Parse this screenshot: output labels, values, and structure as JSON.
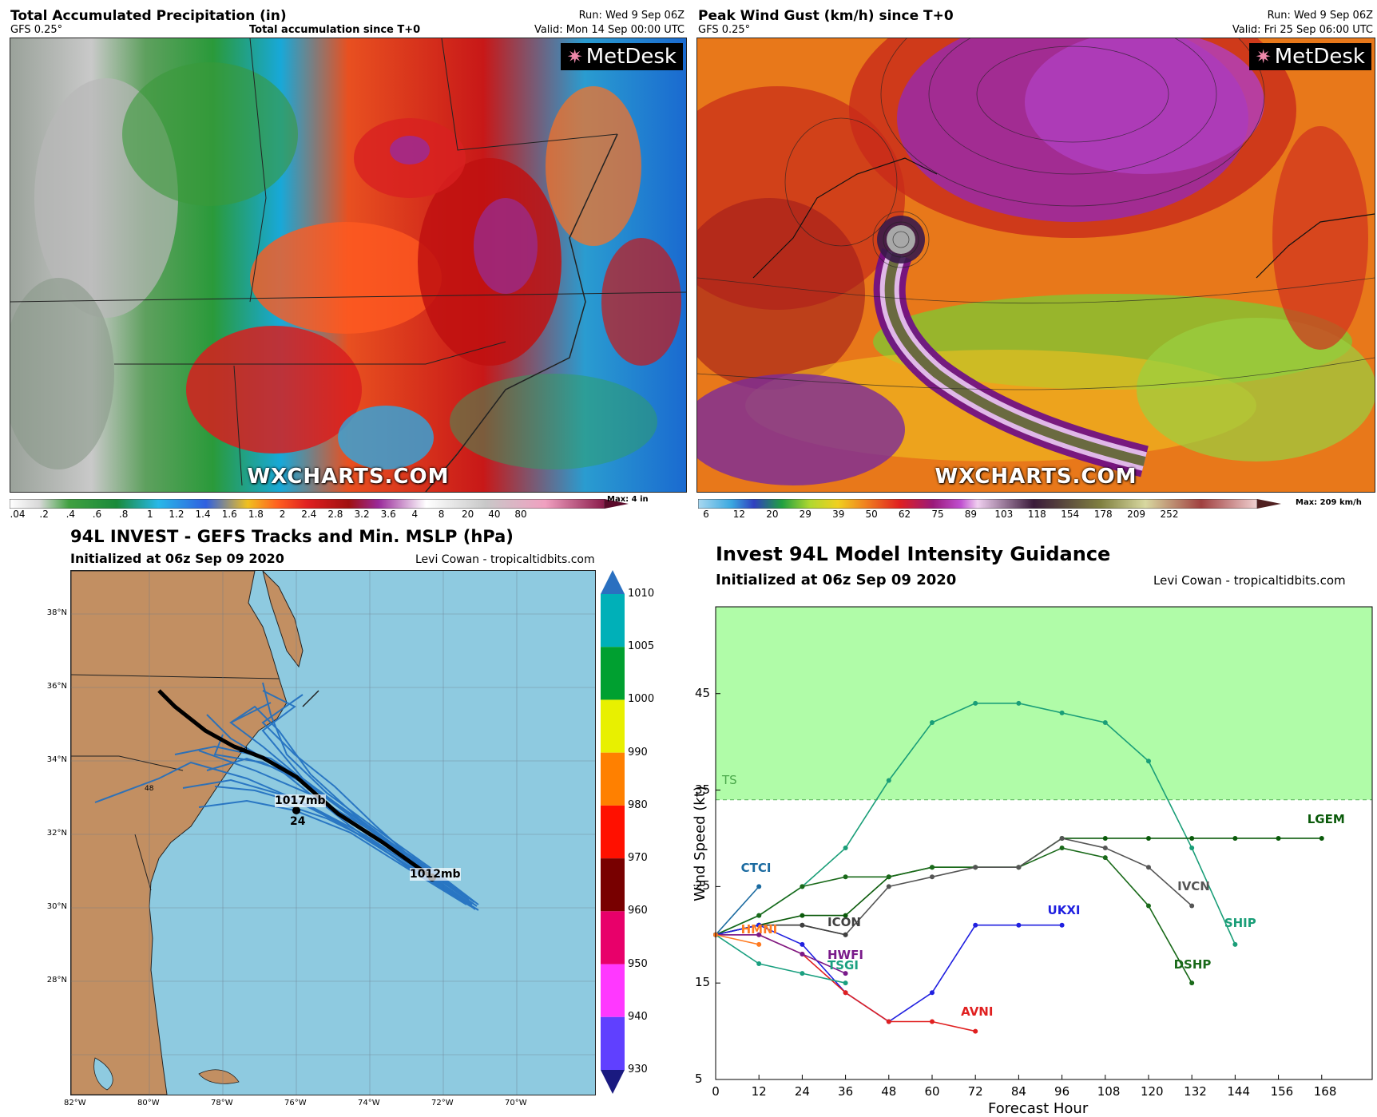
{
  "precip": {
    "title": "Total Accumulated Precipitation (in)",
    "model": "GFS 0.25°",
    "subtitle": "Total accumulation since T+0",
    "run": "Run: Wed 9 Sep 06Z",
    "valid": "Valid: Mon 14 Sep 00:00 UTC",
    "logo": "MetDesk",
    "watermark": "WXCHARTS.COM",
    "colorbar_labels": [
      ".04",
      ".2",
      ".4",
      ".6",
      ".8",
      "1",
      "1.2",
      "1.4",
      "1.6",
      "1.8",
      "2",
      "2.4",
      "2.8",
      "3.2",
      "3.6",
      "4",
      "8",
      "20",
      "40",
      "80"
    ],
    "max_label": "Max: 4 in"
  },
  "gust": {
    "title": "Peak Wind Gust (km/h) since T+0",
    "model": "GFS 0.25°",
    "run": "Run: Wed 9 Sep 06Z",
    "valid": "Valid: Fri 25 Sep 06:00 UTC",
    "logo": "MetDesk",
    "watermark": "WXCHARTS.COM",
    "colorbar_labels": [
      "6",
      "12",
      "20",
      "29",
      "39",
      "50",
      "62",
      "75",
      "89",
      "103",
      "118",
      "154",
      "178",
      "209",
      "252"
    ],
    "max_label": "Max: 209 km/h"
  },
  "tracks": {
    "title": "94L INVEST - GEFS Tracks and Min. MSLP (hPa)",
    "initialized": "Initialized at 06z Sep 09 2020",
    "credit": "Levi Cowan - tropicaltidbits.com",
    "lat_labels": [
      "38°N",
      "36°N",
      "34°N",
      "32°N",
      "30°N",
      "28°N"
    ],
    "lon_labels": [
      "82°W",
      "80°W",
      "78°W",
      "76°W",
      "74°W",
      "72°W",
      "70°W"
    ],
    "colorbar_labels": [
      "1010",
      "1005",
      "1000",
      "990",
      "980",
      "970",
      "960",
      "950",
      "940",
      "930"
    ],
    "colorbar_colors": [
      "#00b0b8",
      "#00a030",
      "#e8f000",
      "#ff8000",
      "#ff1000",
      "#780000",
      "#e8006a",
      "#ff38ff",
      "#6040ff"
    ],
    "annotations": {
      "start": "1017mb",
      "end": "1012mb",
      "hour": "24",
      "hour48": "48",
      "small24": "24"
    }
  },
  "intensity": {
    "title": "Invest 94L Model Intensity Guidance",
    "initialized": "Initialized at 06z Sep 09 2020",
    "credit": "Levi Cowan - tropicaltidbits.com",
    "xlabel": "Forecast Hour",
    "ylabel": "Wind Speed (kt)",
    "ts_label": "TS",
    "x_ticks": [
      0,
      12,
      24,
      36,
      48,
      60,
      72,
      84,
      96,
      108,
      120,
      132,
      144,
      156,
      168
    ],
    "y_ticks": [
      5,
      15,
      25,
      35,
      45
    ],
    "xlim": [
      0,
      182
    ],
    "ylim": [
      5,
      54
    ],
    "ts_threshold": 34,
    "series": [
      {
        "name": "SHIP",
        "color": "#1a9e78",
        "x": [
          0,
          12,
          24,
          36,
          48,
          60,
          72,
          84,
          96,
          108,
          120,
          132,
          144
        ],
        "y": [
          20,
          22,
          25,
          29,
          36,
          42,
          44,
          44,
          43,
          42,
          38,
          29,
          19
        ],
        "label_x": 141,
        "label_y": 20.5
      },
      {
        "name": "LGEM",
        "color": "#0a5a0a",
        "x": [
          0,
          12,
          24,
          36,
          48,
          60,
          72,
          84,
          96,
          108,
          120,
          132,
          144,
          156,
          168
        ],
        "y": [
          20,
          21,
          22,
          22,
          26,
          27,
          27,
          27,
          30,
          30,
          30,
          30,
          30,
          30,
          30
        ],
        "label_x": 164,
        "label_y": 31.2
      },
      {
        "name": "DSHP",
        "color": "#1a6a1a",
        "x": [
          0,
          12,
          24,
          36,
          48,
          60,
          72,
          84,
          96,
          108,
          120,
          132
        ],
        "y": [
          20,
          22,
          25,
          26,
          26,
          27,
          27,
          27,
          29,
          28,
          23,
          15
        ],
        "label_x": 127,
        "label_y": 16.2
      },
      {
        "name": "IVCN",
        "color": "#555555",
        "x": [
          0,
          12,
          24,
          36,
          48,
          60,
          72,
          84,
          96,
          108,
          120,
          132
        ],
        "y": [
          20,
          21,
          21,
          20,
          25,
          26,
          27,
          27,
          30,
          29,
          27,
          23
        ],
        "label_x": 128,
        "label_y": 24.3
      },
      {
        "name": "ICON",
        "color": "#404040",
        "x": [
          0,
          12,
          24,
          36
        ],
        "y": [
          20,
          21,
          21,
          20
        ],
        "label_x": 31,
        "label_y": 20.6
      },
      {
        "name": "CTCI",
        "color": "#1a6aa0",
        "x": [
          0,
          12
        ],
        "y": [
          20,
          25
        ],
        "label_x": 7,
        "label_y": 26.2
      },
      {
        "name": "UKXI",
        "color": "#2020e0",
        "x": [
          0,
          12,
          24,
          36,
          48,
          60,
          72,
          84,
          96
        ],
        "y": [
          20,
          21,
          19,
          14,
          11,
          14,
          21,
          21,
          21
        ],
        "label_x": 92,
        "label_y": 21.8
      },
      {
        "name": "AVNI",
        "color": "#e02020",
        "x": [
          0,
          12,
          24,
          36,
          48,
          60,
          72
        ],
        "y": [
          20,
          20,
          18,
          14,
          11,
          11,
          10
        ],
        "label_x": 68,
        "label_y": 11.3
      },
      {
        "name": "HWFI",
        "color": "#7a1a8a",
        "x": [
          0,
          12,
          24,
          36
        ],
        "y": [
          20,
          20,
          18,
          16
        ],
        "label_x": 31,
        "label_y": 17.2
      },
      {
        "name": "TSGI",
        "color": "#1aa080",
        "x": [
          0,
          12,
          24,
          36
        ],
        "y": [
          20,
          17,
          16,
          15
        ],
        "label_x": 31,
        "label_y": 16.1
      },
      {
        "name": "HMNI",
        "color": "#ff7a20",
        "x": [
          0,
          12
        ],
        "y": [
          20,
          19
        ],
        "label_x": 7,
        "label_y": 19.8
      }
    ]
  }
}
